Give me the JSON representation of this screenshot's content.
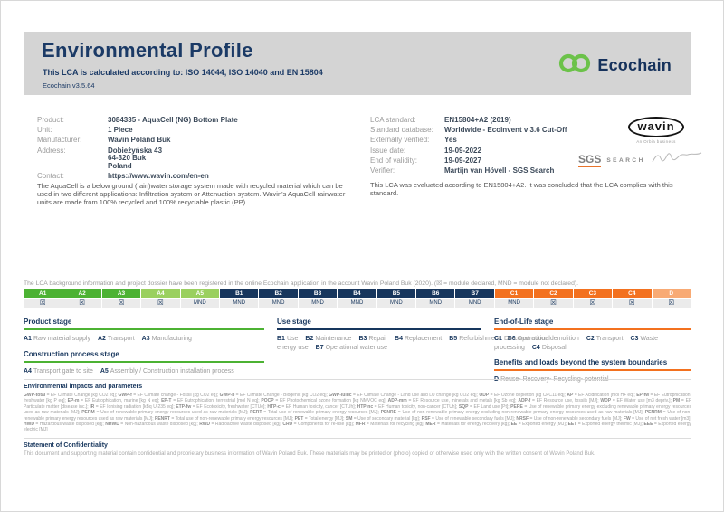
{
  "header": {
    "title": "Environmental Profile",
    "subtitle": "This LCA is calculated according to: ISO 14044, ISO 14040 and EN 15804",
    "version": "Ecochain v3.5.64",
    "brand": "Ecochain",
    "brand_green": "#6cc24a",
    "brand_navy": "#16325c"
  },
  "product_info": {
    "rows": [
      {
        "label": "Product:",
        "value": "3084335 - AquaCell (NG) Bottom Plate"
      },
      {
        "label": "Unit:",
        "value": "1 Piece"
      },
      {
        "label": "Manufacturer:",
        "value": "Wavin Poland Buk"
      },
      {
        "label": "Address:",
        "value": "Dobieżyńska 43\n64-320 Buk\nPoland"
      },
      {
        "label": "Contact:",
        "value": "https://www.wavin.com/en-en",
        "link": true
      }
    ],
    "description": "The AquaCell is a below ground (rain)water storage system made with recycled material which can be used in two different applications: Infiltration system or Attenuation system. Wavin's AquaCell rainwater units are made from 100% recycled and 100% recyclable plastic (PP)."
  },
  "lca_info": {
    "rows": [
      {
        "label": "LCA standard:",
        "value": "EN15804+A2 (2019)"
      },
      {
        "label": "Standard database:",
        "value": "Worldwide - Ecoinvent v 3.6 Cut-Off"
      },
      {
        "label": "Externally verified:",
        "value": "Yes"
      },
      {
        "label": "Issue date:",
        "value": "19-09-2022"
      },
      {
        "label": "End of validity:",
        "value": "19-09-2027"
      },
      {
        "label": "Verifier:",
        "value": "Martijn van Hövell - SGS Search"
      }
    ],
    "evaluation": "This LCA was evaluated according to EN15804+A2. It was concluded that the LCA complies with this standard."
  },
  "logos": {
    "wavin": "wavin",
    "wavin_sub": "An Orbia business",
    "sgs": "SGS",
    "search": "SEARCH"
  },
  "modules": {
    "registration_note": "The LCA background information and project dossier have been registered in the online Ecochain application in the account Wavin Poland Buk (2020). (☒ = module declared, MND = module not declared).",
    "colors": {
      "green": "#4cb233",
      "lightgreen": "#9ad05f",
      "navy": "#17365d",
      "orange": "#f3711f",
      "lightorange": "#f8aa74"
    },
    "columns": [
      {
        "code": "A1",
        "status": "☒",
        "color": "green"
      },
      {
        "code": "A2",
        "status": "☒",
        "color": "green"
      },
      {
        "code": "A3",
        "status": "☒",
        "color": "green"
      },
      {
        "code": "A4",
        "status": "☒",
        "color": "lightgreen"
      },
      {
        "code": "A5",
        "status": "MND",
        "color": "lightgreen"
      },
      {
        "code": "B1",
        "status": "MND",
        "color": "navy"
      },
      {
        "code": "B2",
        "status": "MND",
        "color": "navy"
      },
      {
        "code": "B3",
        "status": "MND",
        "color": "navy"
      },
      {
        "code": "B4",
        "status": "MND",
        "color": "navy"
      },
      {
        "code": "B5",
        "status": "MND",
        "color": "navy"
      },
      {
        "code": "B6",
        "status": "MND",
        "color": "navy"
      },
      {
        "code": "B7",
        "status": "MND",
        "color": "navy"
      },
      {
        "code": "C1",
        "status": "MND",
        "color": "orange"
      },
      {
        "code": "C2",
        "status": "☒",
        "color": "orange"
      },
      {
        "code": "C3",
        "status": "☒",
        "color": "orange"
      },
      {
        "code": "C4",
        "status": "☒",
        "color": "orange"
      },
      {
        "code": "D",
        "status": "☒",
        "color": "lightorange"
      }
    ]
  },
  "legend": {
    "col1": [
      {
        "title": "Product stage",
        "accent": "#4cb233",
        "items": [
          {
            "code": "A1",
            "label": "Raw material supply"
          },
          {
            "code": "A2",
            "label": "Transport"
          },
          {
            "code": "A3",
            "label": "Manufacturing"
          }
        ]
      },
      {
        "title": "Construction process stage",
        "accent": "#4cb233",
        "items": [
          {
            "code": "A4",
            "label": "Transport gate to site"
          },
          {
            "code": "A5",
            "label": "Assembly / Construction installation process"
          }
        ]
      }
    ],
    "col2": [
      {
        "title": "Use stage",
        "accent": "#17365d",
        "items": [
          {
            "code": "B1",
            "label": "Use"
          },
          {
            "code": "B2",
            "label": "Maintenance"
          },
          {
            "code": "B3",
            "label": "Repair"
          },
          {
            "code": "B4",
            "label": "Replacement"
          },
          {
            "code": "B5",
            "label": "Refurbishment"
          },
          {
            "code": "B6",
            "label": "Operational energy use"
          },
          {
            "code": "B7",
            "label": "Operational water use"
          }
        ]
      }
    ],
    "col3": [
      {
        "title": "End-of-Life stage",
        "accent": "#f3711f",
        "items": [
          {
            "code": "C1",
            "label": "De-construction demolition"
          },
          {
            "code": "C2",
            "label": "Transport"
          },
          {
            "code": "C3",
            "label": "Waste processing"
          },
          {
            "code": "C4",
            "label": "Disposal"
          }
        ]
      },
      {
        "title": "Benefits and loads beyond the system boundaries",
        "accent": "#f3711f",
        "items": [
          {
            "code": "D",
            "label": "Reuse- Recovery- Recycling- potential"
          }
        ]
      }
    ]
  },
  "impacts": {
    "heading": "Environmental impacts and parameters",
    "terms": [
      {
        "code": "GWP-total",
        "def": "EF Climate Change [kg CO2 eq]"
      },
      {
        "code": "GWP-f",
        "def": "EF Climate change - Fossil [kg CO2 eq]"
      },
      {
        "code": "GWP-b",
        "def": "EF Climate Change - Biogenic [kg CO2 eq]"
      },
      {
        "code": "GWP-luluc",
        "def": "EF Climate Change - Land use and LU change [kg CO2 eq]"
      },
      {
        "code": "ODP",
        "def": "EF Ozone depletion [kg CFC11 eq]"
      },
      {
        "code": "AP",
        "def": "EF Acidification [mol H+ eq]"
      },
      {
        "code": "EP-fw",
        "def": "EF Eutrophication, freshwater [kg P eq]"
      },
      {
        "code": "EP-m",
        "def": "EF Eutrophication, marine [kg N eq]"
      },
      {
        "code": "EP-T",
        "def": "EF Eutrophication, terrestrial [mol N eq]"
      },
      {
        "code": "POCP",
        "def": "EF Photochemical ozone formation [kg NMVOC eq]"
      },
      {
        "code": "ADP-mm",
        "def": "EF Resource use, minerals and metals [kg Sb eq]"
      },
      {
        "code": "ADP-f",
        "def": "EF Resource use, fossils [MJ]"
      },
      {
        "code": "WDP",
        "def": "EF Water use [m3 depriv.]"
      },
      {
        "code": "PM",
        "def": "EF Particulate matter [disease inc.]"
      },
      {
        "code": "IR",
        "def": "EF Ionising radiation [kBq U-235 eq]"
      },
      {
        "code": "ETP-fw",
        "def": "EF Ecotoxicity, freshwater [CTUe]"
      },
      {
        "code": "HTP-c",
        "def": "EF Human toxicity, cancer [CTUh]"
      },
      {
        "code": "HTP-nc",
        "def": "EF Human toxicity, non-cancer [CTUh]"
      },
      {
        "code": "SQP",
        "def": "EF Land use [Pt]"
      },
      {
        "code": "PERE",
        "def": "Use of renewable primary energy excluding renewable primary energy resources used as raw materials [MJ]"
      },
      {
        "code": "PERM",
        "def": "Use of renewable primary energy resources used as raw materials [MJ]"
      },
      {
        "code": "PERT",
        "def": "Total use of renewable primary energy resources [MJ]"
      },
      {
        "code": "PENRE",
        "def": "Use of non renewable primary energy excluding non-renewable primary energy resources used as raw materials [MJ]"
      },
      {
        "code": "PENRM",
        "def": "Use of non-renewable primary energy resources used as raw materials [MJ]"
      },
      {
        "code": "PENRT",
        "def": "Total use of non-renewable primary energy resources [MJ]"
      },
      {
        "code": "PET",
        "def": "Total energy [MJ]"
      },
      {
        "code": "SM",
        "def": "Use of secondary material [kg]"
      },
      {
        "code": "RSF",
        "def": "Use of renewable secondary fuels [MJ]"
      },
      {
        "code": "NRSF",
        "def": "Use of non-renewable secondary fuels [MJ]"
      },
      {
        "code": "FW",
        "def": "Use of net fresh water [m3]"
      },
      {
        "code": "HWD",
        "def": "Hazardous waste disposed [kg]"
      },
      {
        "code": "NHWD",
        "def": "Non-hazardous waste disposed [kg]"
      },
      {
        "code": "RWD",
        "def": "Radioactive waste disposed [kg]"
      },
      {
        "code": "CRU",
        "def": "Components for re-use [kg]"
      },
      {
        "code": "MFR",
        "def": "Materials for recycling [kg]"
      },
      {
        "code": "MER",
        "def": "Materials for energy recovery [kg]"
      },
      {
        "code": "EE",
        "def": "Exported energy [MJ]"
      },
      {
        "code": "EET",
        "def": "Exported energy thermic [MJ]"
      },
      {
        "code": "EEE",
        "def": "Exported energy electric [MJ]"
      }
    ]
  },
  "confidentiality": {
    "heading": "Statement of Confidentiality",
    "text": "This document and supporting material contain confidential and proprietary business information of Wavin Poland Buk. These materials may be printed or (photo) copied or otherwise used only with the written consent of Wavin Poland Buk."
  }
}
